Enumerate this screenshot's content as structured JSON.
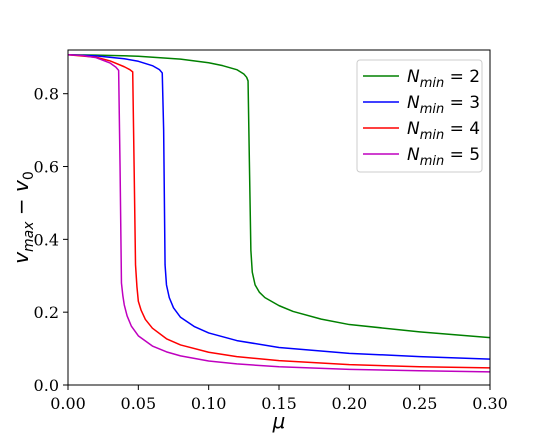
{
  "chart_data": {
    "type": "line",
    "title": "",
    "xlabel": "μ",
    "ylabel_main": "v",
    "ylabel_sub1": "max",
    "ylabel_minus": " − ",
    "ylabel_main2": "v",
    "ylabel_sub2": "0",
    "xlim": [
      0.0,
      0.3
    ],
    "ylim": [
      0.0,
      0.92
    ],
    "grid": false,
    "legend_placement": "top-right",
    "x_ticks": [
      0.0,
      0.05,
      0.1,
      0.15,
      0.2,
      0.25,
      0.3
    ],
    "x_tick_labels": [
      "0.00",
      "0.05",
      "0.10",
      "0.15",
      "0.20",
      "0.25",
      "0.30"
    ],
    "y_ticks": [
      0.0,
      0.2,
      0.4,
      0.6,
      0.8
    ],
    "y_tick_labels": [
      "0.0",
      "0.2",
      "0.4",
      "0.6",
      "0.8"
    ],
    "series": [
      {
        "legend_main": "N",
        "legend_sub": "min",
        "legend_eq": " = 2",
        "color": "#008000",
        "x": [
          0.0,
          0.02,
          0.05,
          0.08,
          0.1,
          0.11,
          0.12,
          0.125,
          0.127,
          0.128,
          0.129,
          0.13,
          0.131,
          0.133,
          0.136,
          0.14,
          0.15,
          0.16,
          0.18,
          0.2,
          0.25,
          0.3
        ],
        "y": [
          0.907,
          0.906,
          0.903,
          0.895,
          0.885,
          0.877,
          0.866,
          0.854,
          0.845,
          0.835,
          0.6,
          0.37,
          0.31,
          0.275,
          0.255,
          0.24,
          0.218,
          0.202,
          0.181,
          0.166,
          0.146,
          0.13
        ]
      },
      {
        "legend_main": "N",
        "legend_sub": "min",
        "legend_eq": " = 3",
        "color": "#0000ff",
        "x": [
          0.0,
          0.02,
          0.04,
          0.05,
          0.06,
          0.065,
          0.067,
          0.068,
          0.069,
          0.07,
          0.072,
          0.075,
          0.08,
          0.09,
          0.1,
          0.12,
          0.15,
          0.2,
          0.25,
          0.3
        ],
        "y": [
          0.907,
          0.904,
          0.896,
          0.889,
          0.877,
          0.866,
          0.857,
          0.7,
          0.33,
          0.275,
          0.24,
          0.212,
          0.186,
          0.16,
          0.143,
          0.122,
          0.103,
          0.087,
          0.078,
          0.071
        ]
      },
      {
        "legend_main": "N",
        "legend_sub": "min",
        "legend_eq": " = 4",
        "color": "#ff0000",
        "x": [
          0.0,
          0.02,
          0.03,
          0.04,
          0.044,
          0.046,
          0.047,
          0.048,
          0.049,
          0.05,
          0.052,
          0.055,
          0.06,
          0.07,
          0.08,
          0.1,
          0.12,
          0.15,
          0.2,
          0.25,
          0.3
        ],
        "y": [
          0.907,
          0.9,
          0.89,
          0.874,
          0.866,
          0.86,
          0.6,
          0.33,
          0.27,
          0.23,
          0.205,
          0.18,
          0.156,
          0.127,
          0.11,
          0.09,
          0.078,
          0.067,
          0.056,
          0.05,
          0.047
        ]
      },
      {
        "legend_main": "N",
        "legend_sub": "min",
        "legend_eq": " = 5",
        "color": "#bf00bf",
        "x": [
          0.0,
          0.01,
          0.02,
          0.03,
          0.034,
          0.036,
          0.037,
          0.038,
          0.039,
          0.04,
          0.042,
          0.045,
          0.05,
          0.06,
          0.07,
          0.08,
          0.1,
          0.12,
          0.15,
          0.2,
          0.25,
          0.3
        ],
        "y": [
          0.907,
          0.905,
          0.899,
          0.884,
          0.873,
          0.864,
          0.6,
          0.28,
          0.245,
          0.22,
          0.19,
          0.162,
          0.135,
          0.107,
          0.091,
          0.08,
          0.066,
          0.058,
          0.05,
          0.043,
          0.039,
          0.036
        ]
      }
    ]
  }
}
